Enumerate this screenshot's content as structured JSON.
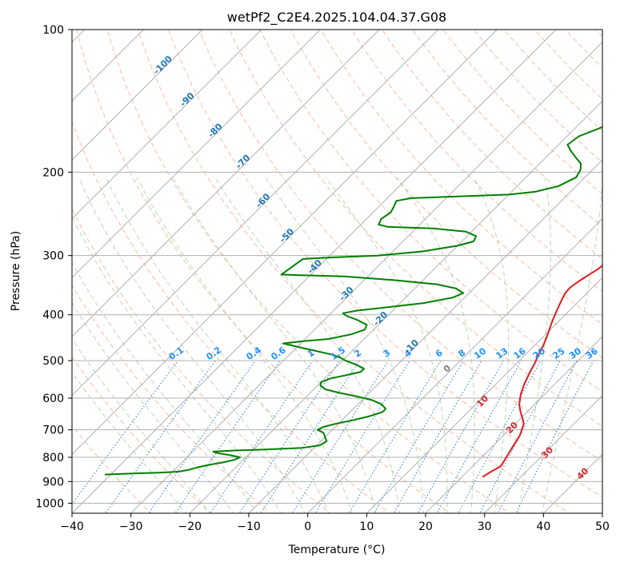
{
  "chart_data": {
    "type": "line",
    "subtype": "skew-t log-p diagram",
    "title": "wetPf2_C2E4.2025.104.04.37.G08",
    "xlabel": "Temperature (°C)",
    "ylabel": "Pressure (hPa)",
    "xlim": [
      -40,
      50
    ],
    "ylim": [
      1050,
      100
    ],
    "y_scale": "log",
    "grid": true,
    "x_ticks": [
      -40,
      -30,
      -20,
      -10,
      0,
      10,
      20,
      30,
      40,
      50
    ],
    "y_ticks": [
      100,
      200,
      300,
      400,
      500,
      600,
      700,
      800,
      900,
      1000
    ],
    "series": [
      {
        "color": "#e31a1c",
        "points": [
          [
            23.5,
            880
          ],
          [
            24,
            860
          ],
          [
            24.8,
            835
          ],
          [
            24.2,
            800
          ],
          [
            23.5,
            760
          ],
          [
            22.8,
            720
          ],
          [
            21.5,
            680
          ],
          [
            20.2,
            660
          ],
          [
            18.8,
            640
          ],
          [
            17.5,
            620
          ],
          [
            16,
            590
          ],
          [
            14.8,
            560
          ],
          [
            13.8,
            530
          ],
          [
            13,
            505
          ],
          [
            12.2,
            485
          ],
          [
            11.5,
            465
          ],
          [
            10.6,
            445
          ],
          [
            9.8,
            430
          ],
          [
            9,
            415
          ],
          [
            8,
            395
          ],
          [
            7,
            375
          ],
          [
            6.3,
            360
          ],
          [
            6.2,
            350
          ],
          [
            6.6,
            340
          ],
          [
            7.2,
            330
          ],
          [
            7.8,
            320
          ],
          [
            8.3,
            300
          ],
          [
            8.7,
            280
          ],
          [
            9.3,
            260
          ],
          [
            9.8,
            245
          ],
          [
            10.1,
            230
          ],
          [
            10.1,
            215
          ],
          [
            9.9,
            200
          ],
          [
            9.6,
            190
          ],
          [
            9.4,
            178
          ],
          [
            9.4,
            165
          ],
          [
            9.2,
            150
          ],
          [
            8.8,
            138
          ],
          [
            8.2,
            128
          ],
          [
            7.6,
            122
          ],
          [
            7.6,
            115
          ],
          [
            7.9,
            108
          ],
          [
            8.3,
            100
          ]
        ]
      },
      {
        "color": "#008000",
        "points": [
          [
            -41,
            870
          ],
          [
            -36,
            865
          ],
          [
            -32,
            862
          ],
          [
            -29,
            858
          ],
          [
            -27.5,
            850
          ],
          [
            -26.5,
            840
          ],
          [
            -25,
            830
          ],
          [
            -23,
            820
          ],
          [
            -21.5,
            810
          ],
          [
            -21,
            800
          ],
          [
            -23,
            792
          ],
          [
            -25.5,
            784
          ],
          [
            -26.5,
            778
          ],
          [
            -23,
            774
          ],
          [
            -18,
            770
          ],
          [
            -12,
            764
          ],
          [
            -9.5,
            755
          ],
          [
            -9,
            740
          ],
          [
            -10,
            725
          ],
          [
            -11,
            710
          ],
          [
            -12.5,
            700
          ],
          [
            -12,
            690
          ],
          [
            -10.5,
            680
          ],
          [
            -8,
            667
          ],
          [
            -6,
            655
          ],
          [
            -4.5,
            642
          ],
          [
            -4.5,
            632
          ],
          [
            -6,
            618
          ],
          [
            -8.5,
            605
          ],
          [
            -11.5,
            595
          ],
          [
            -15,
            585
          ],
          [
            -18,
            575
          ],
          [
            -19.5,
            565
          ],
          [
            -20,
            555
          ],
          [
            -19,
            545
          ],
          [
            -17,
            537
          ],
          [
            -15,
            528
          ],
          [
            -15,
            520
          ],
          [
            -17,
            510
          ],
          [
            -19.5,
            500
          ],
          [
            -21,
            492
          ],
          [
            -23,
            485
          ],
          [
            -27,
            475
          ],
          [
            -31,
            465
          ],
          [
            -33,
            460
          ],
          [
            -30,
            455
          ],
          [
            -26,
            450
          ],
          [
            -23,
            440
          ],
          [
            -21.5,
            430
          ],
          [
            -22,
            420
          ],
          [
            -24.5,
            410
          ],
          [
            -27,
            402
          ],
          [
            -28,
            397
          ],
          [
            -26,
            392
          ],
          [
            -21,
            385
          ],
          [
            -16,
            378
          ],
          [
            -12,
            368
          ],
          [
            -11,
            360
          ],
          [
            -13,
            352
          ],
          [
            -17,
            345
          ],
          [
            -25,
            338
          ],
          [
            -34,
            332
          ],
          [
            -42,
            330
          ],
          [
            -45,
            329
          ],
          [
            -44,
            305
          ],
          [
            -40,
            303
          ],
          [
            -32,
            300
          ],
          [
            -25,
            294
          ],
          [
            -20,
            286
          ],
          [
            -18,
            280
          ],
          [
            -18.5,
            273
          ],
          [
            -21,
            267
          ],
          [
            -27,
            263
          ],
          [
            -35,
            261
          ],
          [
            -37,
            258
          ],
          [
            -37.5,
            251
          ],
          [
            -37,
            243
          ],
          [
            -37.5,
            236
          ],
          [
            -38,
            230
          ],
          [
            -36,
            227
          ],
          [
            -28,
            225
          ],
          [
            -20,
            223
          ],
          [
            -16,
            220
          ],
          [
            -13,
            214
          ],
          [
            -11.5,
            205
          ],
          [
            -12,
            198
          ],
          [
            -13,
            192
          ],
          [
            -15,
            186
          ],
          [
            -17,
            180
          ],
          [
            -18.5,
            175
          ],
          [
            -18,
            168
          ],
          [
            -16,
            162
          ],
          [
            -14,
            155
          ],
          [
            -12,
            148
          ],
          [
            -10,
            140
          ],
          [
            -8,
            132
          ],
          [
            -6,
            125
          ],
          [
            -5,
            118
          ],
          [
            -4,
            111
          ],
          [
            -2.5,
            106
          ],
          [
            -1,
            103
          ],
          [
            0,
            100
          ]
        ]
      }
    ],
    "mixing_ratio_labels": [
      "0.1",
      "0.2",
      "0.4",
      "0.6",
      "1",
      "1.5",
      "2",
      "3",
      "4",
      "6",
      "8",
      "10",
      "13",
      "16",
      "20",
      "25",
      "30",
      "36"
    ],
    "mixing_ratio_values": [
      0.1,
      0.2,
      0.4,
      0.6,
      1,
      1.5,
      2,
      3,
      4,
      6,
      8,
      10,
      13,
      16,
      20,
      25,
      30,
      36
    ],
    "isotherm_labels": [
      {
        "text": "-100",
        "t": -100,
        "p": 120
      },
      {
        "text": "-90",
        "t": -90,
        "p": 142
      },
      {
        "text": "-80",
        "t": -80,
        "p": 165
      },
      {
        "text": "-70",
        "t": -70,
        "p": 192
      },
      {
        "text": "-60",
        "t": -60,
        "p": 232
      },
      {
        "text": "-50",
        "t": -50,
        "p": 275
      },
      {
        "text": "-40",
        "t": -40,
        "p": 320
      },
      {
        "text": "-30",
        "t": -30,
        "p": 365
      },
      {
        "text": "-20",
        "t": -20,
        "p": 412
      },
      {
        "text": "-10",
        "t": -10,
        "p": 472
      }
    ],
    "dry_adiabat_labels": [
      {
        "text": "0",
        "t": 24,
        "p": 525,
        "color": "#808080"
      },
      {
        "text": "10",
        "t": 30,
        "p": 615,
        "color": "#d62728"
      },
      {
        "text": "20",
        "t": 35,
        "p": 700,
        "color": "#d62728"
      },
      {
        "text": "30",
        "t": 41,
        "p": 790,
        "color": "#d62728"
      },
      {
        "text": "40",
        "t": 47,
        "p": 875,
        "color": "#d62728"
      }
    ],
    "colors": {
      "grid": "#b0b0b0",
      "dry_adiabats": "#f4a582",
      "moist_adiabats": "#a6d19a",
      "mixing_ratio": "#3182d6",
      "isotherm_label": "#1f77b4",
      "mixing_label": "#1e90ff"
    }
  }
}
